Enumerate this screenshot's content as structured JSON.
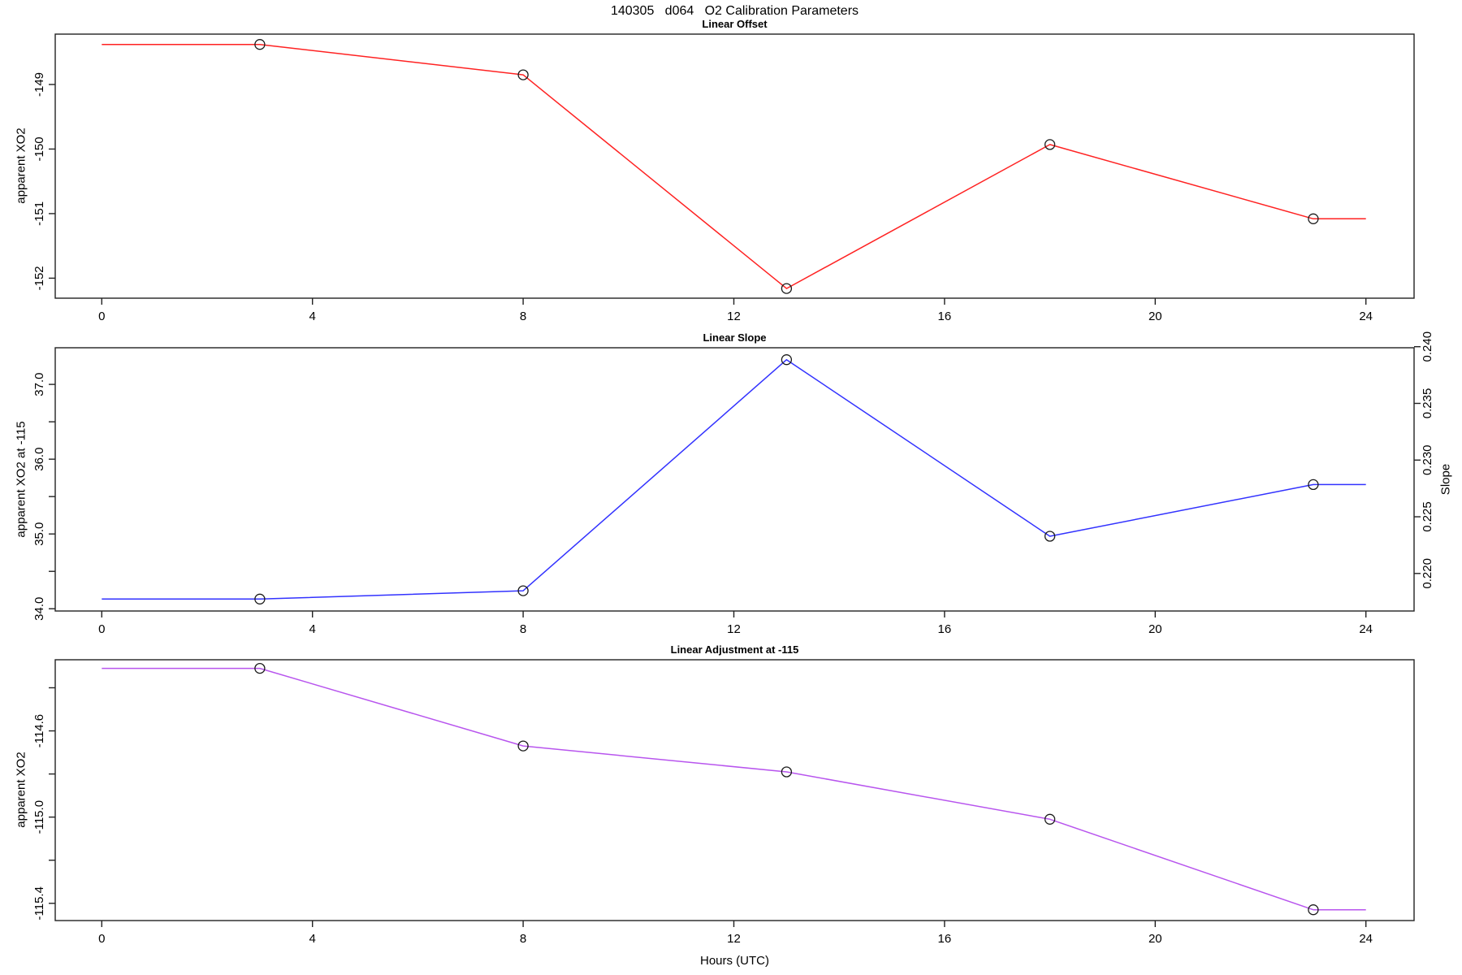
{
  "main_title": "140305   d064   O2 Calibration Parameters",
  "x_axis": {
    "label": "Hours (UTC)",
    "ticks": [
      0,
      4,
      8,
      12,
      16,
      20,
      24
    ],
    "tick_labels": [
      "0",
      "4",
      "8",
      "12",
      "16",
      "20",
      "24"
    ],
    "xlim": [
      -0.88,
      24.92
    ]
  },
  "chart_data": [
    {
      "type": "line",
      "title": "Linear Offset",
      "ylabel": "apparent XO2",
      "line_color": "#ff2222",
      "marker": "open-circle",
      "x": [
        0,
        3,
        8,
        13,
        18,
        23,
        24
      ],
      "y": [
        -148.38,
        -148.38,
        -148.85,
        -152.16,
        -149.93,
        -151.08,
        -151.08
      ],
      "marker_x": [
        3,
        8,
        13,
        18,
        23
      ],
      "yticks": [
        -149,
        -150,
        -151,
        -152
      ],
      "ytick_labels": [
        "-149",
        "-150",
        "-151",
        "-152"
      ],
      "ylim": [
        -152.31,
        -148.22
      ],
      "grid": "off"
    },
    {
      "type": "line",
      "title": "Linear Slope",
      "ylabel": "apparent XO2 at -115",
      "ylabel_right": "Slope",
      "line_color": "#3232ff",
      "marker": "open-circle",
      "x": [
        0,
        3,
        8,
        13,
        18,
        23,
        24
      ],
      "y": [
        34.13,
        34.13,
        34.24,
        37.33,
        34.97,
        35.66,
        35.66
      ],
      "slope_values": [
        0.2178,
        0.2178,
        0.2185,
        0.239,
        0.2233,
        0.228,
        0.228
      ],
      "marker_x": [
        3,
        8,
        13,
        18,
        23
      ],
      "yticks": [
        34.0,
        34.5,
        35.0,
        35.5,
        36.0,
        36.5,
        37.0
      ],
      "ytick_labels": [
        "34.0",
        "",
        "35.0",
        "",
        "36.0",
        "",
        "37.0"
      ],
      "yticks_right": [
        0.22,
        0.225,
        0.23,
        0.235,
        0.24
      ],
      "ytick_labels_right": [
        "0.220",
        "0.225",
        "0.230",
        "0.235",
        "0.240"
      ],
      "ylim": [
        33.97,
        37.49
      ],
      "grid": "off"
    },
    {
      "type": "line",
      "title": "Linear Adjustment at -115",
      "ylabel": "apparent XO2",
      "line_color": "#b855ee",
      "marker": "open-circle",
      "x": [
        0,
        3,
        8,
        13,
        18,
        23,
        24
      ],
      "y": [
        -114.31,
        -114.31,
        -114.67,
        -114.79,
        -115.01,
        -115.43,
        -115.43
      ],
      "marker_x": [
        3,
        8,
        13,
        18,
        23
      ],
      "yticks": [
        -114.4,
        -114.6,
        -114.8,
        -115.0,
        -115.2,
        -115.4
      ],
      "ytick_labels": [
        "",
        "-114.6",
        "",
        "-115.0",
        "",
        "-115.4"
      ],
      "ylim": [
        -115.48,
        -114.27
      ],
      "grid": "off"
    }
  ]
}
